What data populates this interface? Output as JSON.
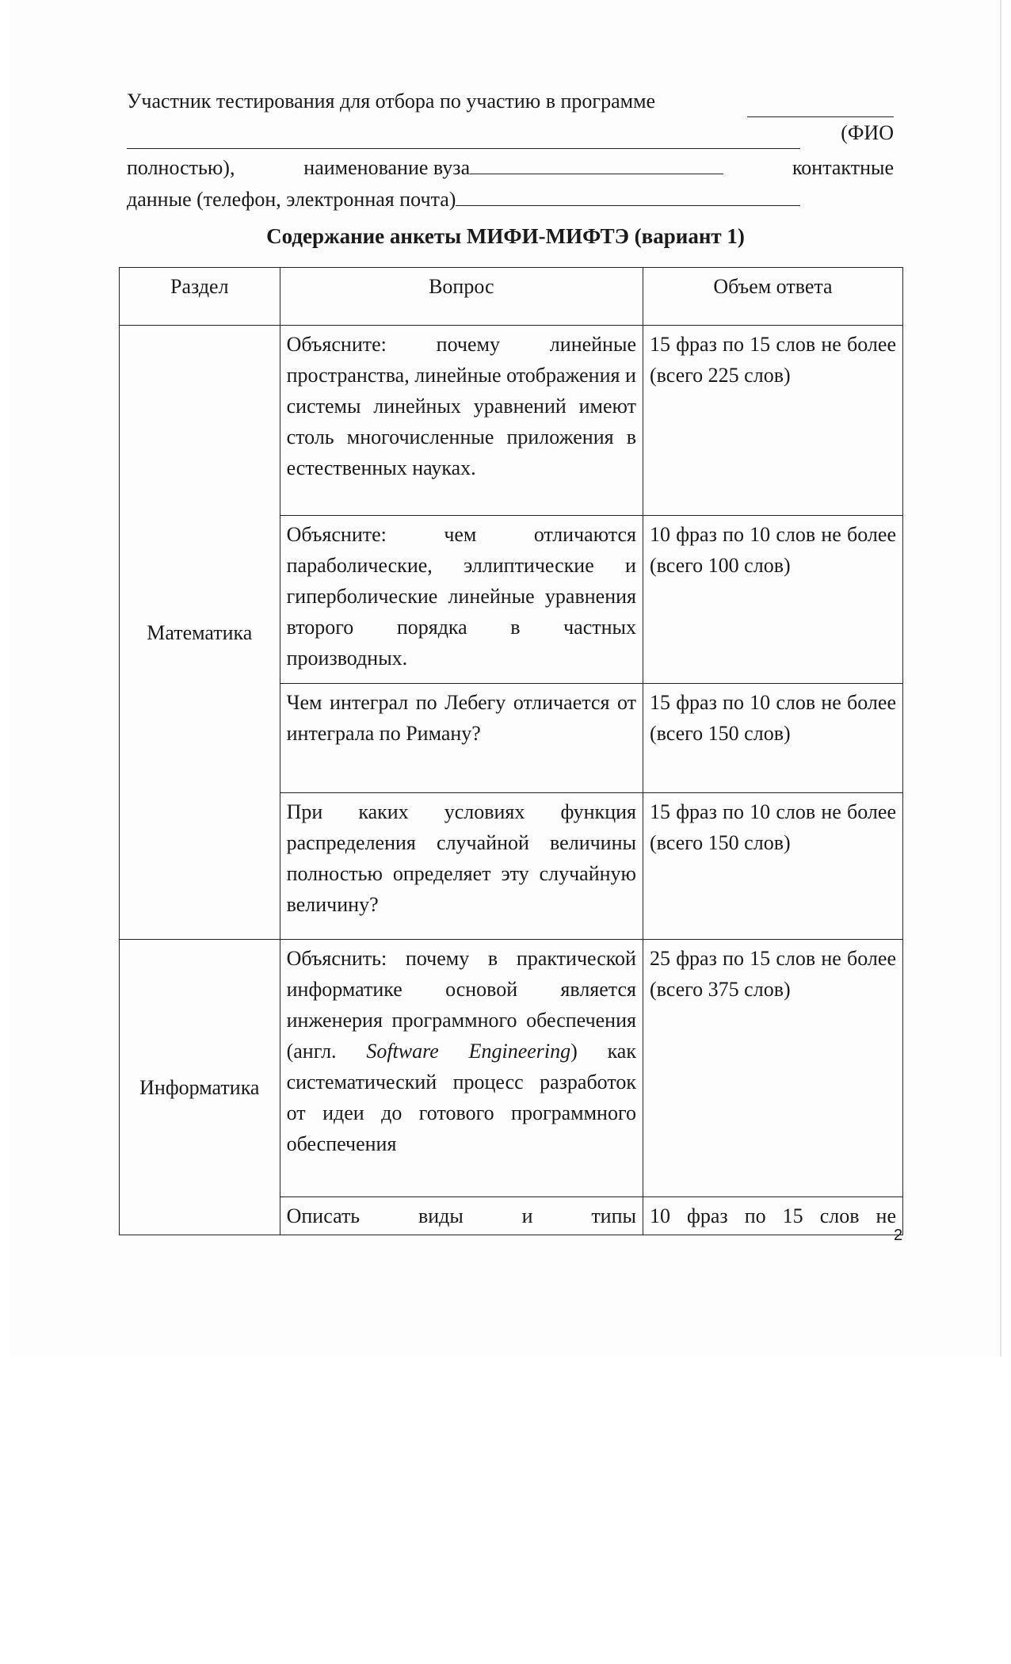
{
  "intro": {
    "line1": "Участник тестирования для отбора по участию в  программе",
    "line2_end": "(ФИО",
    "line3_start": "полностью),",
    "line3_mid": "наименование  вуза",
    "line3_end": "контактные",
    "line4": "данные (телефон, электронная почта)"
  },
  "title": "Содержание анкеты МИФИ-МИФТЭ  (вариант 1)",
  "table": {
    "headers": [
      "Раздел",
      "Вопрос",
      "Объем ответа"
    ],
    "sections": [
      {
        "name": "Математика",
        "rows": [
          {
            "question": "Объясните: почему линейные пространства, линейные отображения и системы линейных уравнений имеют столь многочисленные приложения в естественных науках.",
            "answer": "15 фраз по 15 слов не более (всего 225 слов)"
          },
          {
            "question": "Объясните: чем отличаются параболические, эллиптические и гиперболические линейные уравнения второго порядка в частных производных.",
            "answer": "10 фраз по 10 слов не более (всего 100 слов)"
          },
          {
            "question": "Чем интеграл по Лебегу отличается от интеграла по Риману?",
            "answer": "15 фраз по 10 слов не более (всего 150 слов)"
          },
          {
            "question": "При каких условиях функция распределения случайной величины полностью определяет эту случайную величину?",
            "answer": "15 фраз по 10 слов не более (всего 150 слов)"
          }
        ]
      },
      {
        "name": "Информатика",
        "rows": [
          {
            "question_a": "Объяснить: почему в практической информатике основой является инженерия программного обеспечения (англ.",
            "question_italic": "Software Engineering",
            "question_b": ") как систематический процесс разработок от идеи до готового программного обеспечения",
            "answer": "25 фраз по 15 слов не более (всего 375 слов)"
          },
          {
            "question": "Описать виды и типы",
            "answer": "10 фраз по 15 слов не"
          }
        ]
      }
    ]
  },
  "page_number": "2"
}
